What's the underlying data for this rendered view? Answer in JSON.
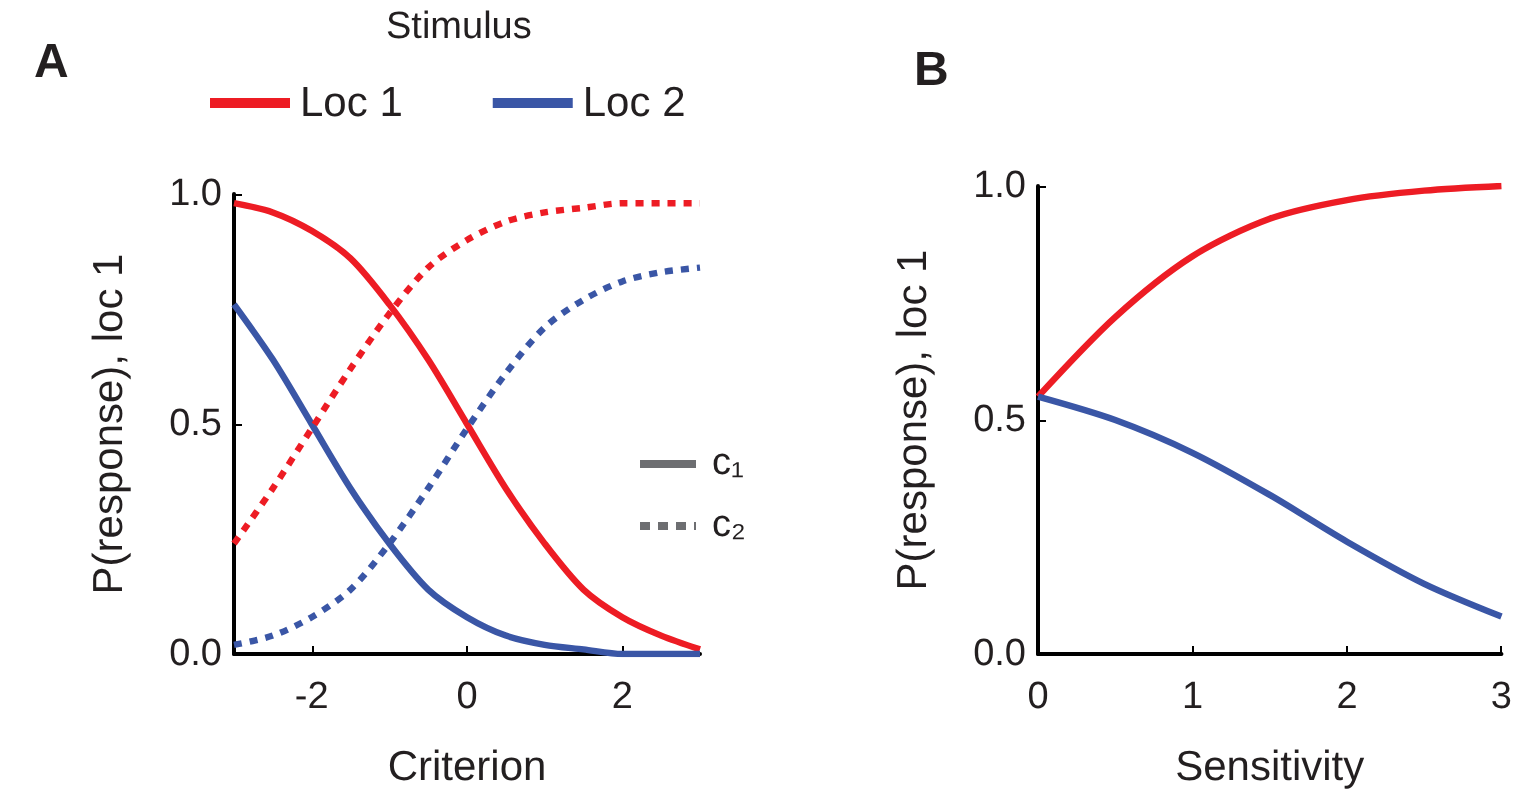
{
  "chart_data": [
    {
      "type": "line",
      "title": "A",
      "xlabel": "Criterion",
      "ylabel": "P(response), loc 1",
      "legend_title": "Stimulus",
      "legend": "top",
      "marker": "none",
      "annotations": [
        "c₁",
        "c₂"
      ],
      "x": [
        -3,
        -2.5,
        -2,
        -1.5,
        -1,
        -0.5,
        0,
        0.5,
        1,
        1.5,
        2,
        2.5,
        3
      ],
      "series": [
        {
          "name": "Loc 1",
          "color": "#ed1c24",
          "line_style": "solid",
          "values": [
            0.98,
            0.96,
            0.92,
            0.86,
            0.76,
            0.64,
            0.5,
            0.36,
            0.24,
            0.14,
            0.08,
            0.04,
            0.01
          ]
        },
        {
          "name": "Loc 2",
          "color": "#3a56a6",
          "line_style": "solid",
          "values": [
            0.76,
            0.64,
            0.5,
            0.36,
            0.24,
            0.14,
            0.08,
            0.04,
            0.02,
            0.01,
            0,
            0,
            0
          ]
        },
        {
          "color": "#ed1c24",
          "line_style": "dashed",
          "values": [
            0.24,
            0.36,
            0.49,
            0.62,
            0.74,
            0.84,
            0.9,
            0.94,
            0.96,
            0.97,
            0.98,
            0.98,
            0.98
          ]
        },
        {
          "color": "#3a56a6",
          "line_style": "dashed",
          "values": [
            0.02,
            0.04,
            0.08,
            0.14,
            0.24,
            0.36,
            0.49,
            0.61,
            0.71,
            0.77,
            0.81,
            0.83,
            0.84
          ]
        }
      ],
      "xlim": [
        -3,
        3
      ],
      "xticks": [
        -2,
        0,
        2
      ],
      "ylim": [
        0,
        1
      ],
      "yticks": [
        {
          "value": 0,
          "label": "0.0"
        },
        {
          "value": 0.5,
          "label": "0.5"
        },
        {
          "value": 1,
          "label": "1.0"
        }
      ]
    },
    {
      "type": "line",
      "title": "B",
      "xlabel": "Sensitivity",
      "ylabel": "P(response), loc 1",
      "marker": "none",
      "x": [
        0,
        0.5,
        1,
        1.5,
        2,
        2.5,
        3
      ],
      "series": [
        {
          "color": "#ed1c24",
          "values": [
            0.55,
            0.72,
            0.85,
            0.93,
            0.97,
            0.99,
            1.0
          ]
        },
        {
          "color": "#3a56a6",
          "values": [
            0.55,
            0.5,
            0.43,
            0.34,
            0.24,
            0.15,
            0.08
          ]
        }
      ],
      "xlim": [
        0,
        3
      ],
      "xticks": [
        0,
        1,
        2,
        3
      ],
      "ylim": [
        0,
        1
      ],
      "yticks": [
        {
          "value": 0,
          "label": "0.0"
        },
        {
          "value": 0.5,
          "label": "0.5"
        },
        {
          "value": 1,
          "label": "1.0"
        }
      ]
    }
  ]
}
